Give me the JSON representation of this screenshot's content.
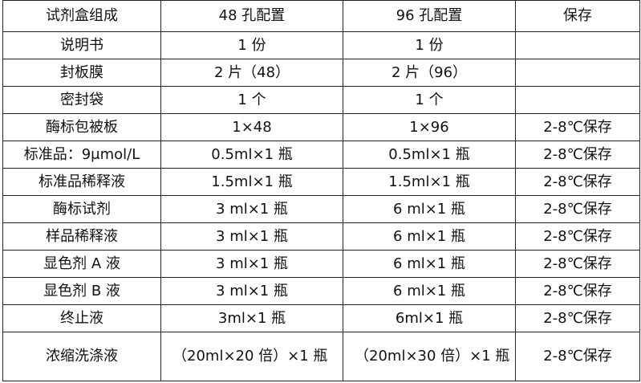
{
  "headers": [
    "试剂盒组成",
    "48 孔配置",
    "96 孔配置",
    "保存"
  ],
  "rows": [
    [
      "说明书",
      "1 份",
      "1 份",
      ""
    ],
    [
      "封板膜",
      "2 片（48）",
      "2 片（96）",
      ""
    ],
    [
      "密封袋",
      "1 个",
      "1 个",
      ""
    ],
    [
      "酶标包被板",
      "1×48",
      "1×96",
      "2-8℃保存"
    ],
    [
      "标准品：9μmol/L",
      "0.5ml×1 瓶",
      "0.5ml×1 瓶",
      "2-8℃保存"
    ],
    [
      "标准品稀释液",
      "1.5ml×1 瓶",
      "1.5ml×1 瓶",
      "2-8℃保存"
    ],
    [
      "酶标试剂",
      "3 ml×1 瓶",
      "6 ml×1 瓶",
      "2-8℃保存"
    ],
    [
      "样品稀释液",
      "3 ml×1 瓶",
      "6 ml×1 瓶",
      "2-8℃保存"
    ],
    [
      "显色剂 A 液",
      "3 ml×1 瓶",
      "6 ml×1 瓶",
      "2-8℃保存"
    ],
    [
      "显色剂 B 液",
      "3 ml×1 瓶",
      "6 ml×1 瓶",
      "2-8℃保存"
    ],
    [
      "终止液",
      "3ml×1 瓶",
      "6ml×1 瓶",
      "2-8℃保存"
    ],
    [
      "浓缩洗涤液",
      "（20ml×20 倍）×1 瓶",
      "（20ml×30 倍）×1 瓶",
      "2-8℃保存"
    ]
  ]
}
